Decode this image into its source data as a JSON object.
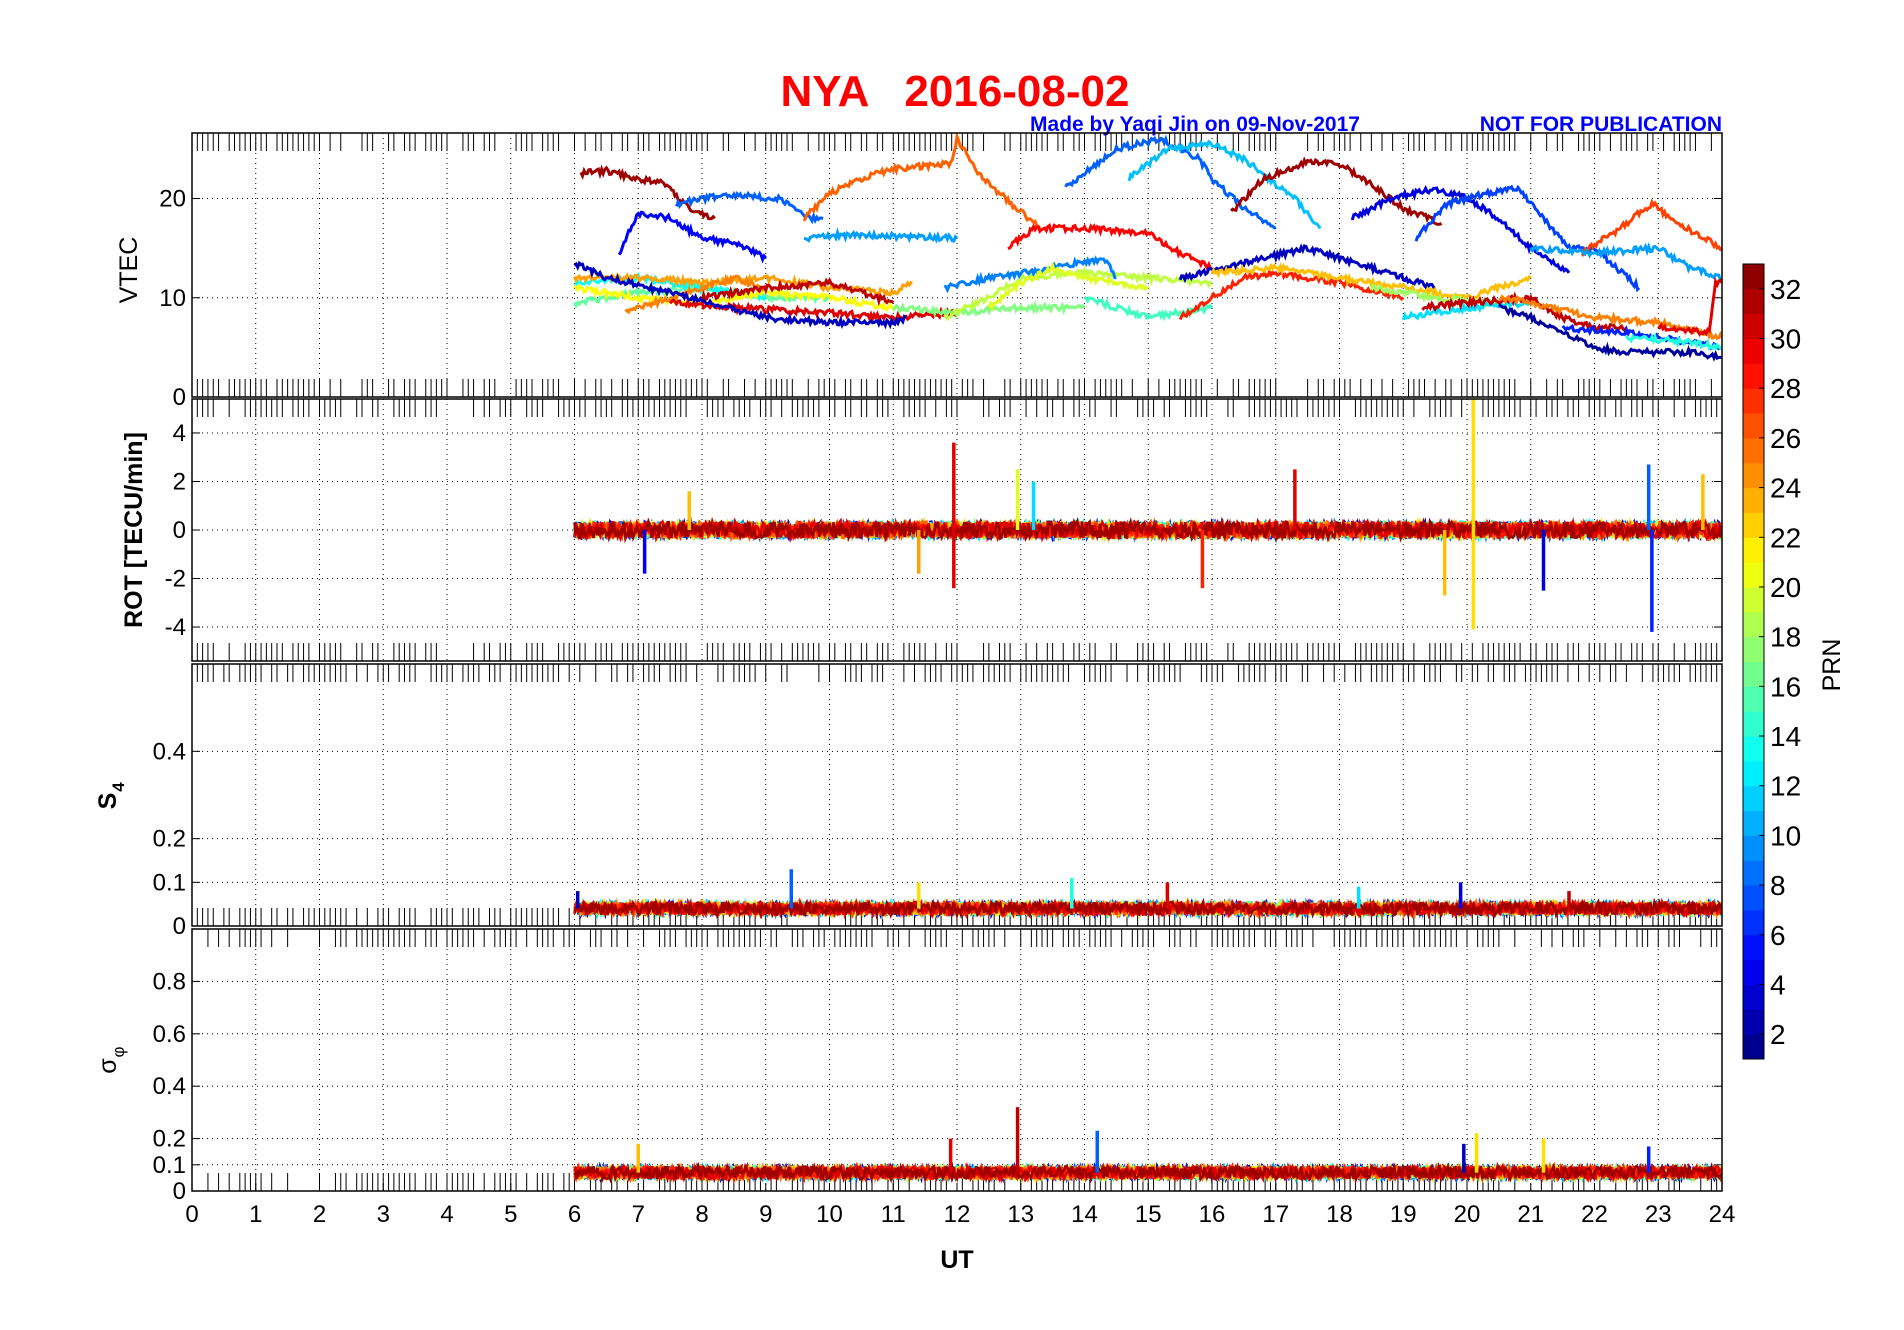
{
  "header": {
    "title": "NYA   2016-08-02",
    "credit": "Made by Yaqi Jin on 09-Nov-2017",
    "notice": "NOT FOR PUBLICATION"
  },
  "chart_data": [
    {
      "type": "line",
      "panel": "vtec",
      "ylabel": "VTEC",
      "xlim": [
        0,
        24
      ],
      "ylim": [
        0,
        26.6
      ],
      "yticks": [
        0,
        10,
        20
      ],
      "ytick_labels": [
        "0",
        "10",
        "20"
      ],
      "grid": true,
      "series": [
        {
          "prn": 32,
          "t": [
            6.1,
            6.5,
            7.0,
            7.4,
            7.8,
            8.2
          ],
          "v": [
            22.5,
            22.8,
            22.0,
            21.5,
            19.0,
            18.0
          ]
        },
        {
          "prn": 5,
          "t": [
            6.7,
            7.0,
            7.5,
            8.0,
            8.5,
            9.0
          ],
          "v": [
            14.5,
            18.5,
            18.0,
            16.0,
            15.5,
            14.0
          ]
        },
        {
          "prn": 8,
          "t": [
            7.6,
            8.0,
            8.5,
            9.2,
            9.7,
            9.9
          ],
          "v": [
            19.5,
            20.0,
            20.3,
            20.0,
            18.0,
            18.0
          ]
        },
        {
          "prn": 26,
          "t": [
            9.6,
            10.0,
            10.5,
            11.0,
            11.9,
            12.0,
            12.4,
            13.3
          ],
          "v": [
            18.0,
            20.5,
            22.0,
            23.0,
            23.5,
            26.0,
            22.0,
            17.0
          ]
        },
        {
          "prn": 10,
          "t": [
            9.6,
            10.0,
            11.0,
            12.0
          ],
          "v": [
            16.0,
            16.3,
            16.2,
            16.0
          ]
        },
        {
          "prn": 29,
          "t": [
            12.8,
            13.2,
            14.0,
            15.0,
            15.5,
            16.0
          ],
          "v": [
            15.0,
            17.0,
            17.0,
            16.5,
            14.5,
            13.0
          ]
        },
        {
          "prn": 8,
          "t": [
            13.7,
            14.5,
            15.2,
            15.8,
            16.0,
            16.5,
            17.0
          ],
          "v": [
            21.0,
            25.0,
            26.0,
            24.0,
            22.0,
            19.0,
            17.0
          ]
        },
        {
          "prn": 11,
          "t": [
            14.7,
            15.3,
            16.0,
            16.5,
            17.3,
            17.7
          ],
          "v": [
            22.0,
            25.0,
            25.5,
            24.0,
            20.0,
            17.0
          ]
        },
        {
          "prn": 32,
          "t": [
            16.3,
            16.8,
            17.5,
            18.0,
            18.6,
            19.0,
            19.6
          ],
          "v": [
            18.5,
            22.0,
            23.7,
            23.5,
            21.0,
            19.0,
            17.5
          ]
        },
        {
          "prn": 4,
          "t": [
            18.2,
            18.8,
            19.5,
            20.0,
            20.5,
            21.0,
            21.6
          ],
          "v": [
            18.0,
            20.0,
            21.0,
            20.0,
            18.0,
            15.0,
            12.5
          ]
        },
        {
          "prn": 7,
          "t": [
            19.2,
            19.7,
            20.3,
            20.8,
            21.2,
            21.6,
            22.0,
            22.7
          ],
          "v": [
            16.0,
            19.5,
            20.5,
            21.0,
            18.0,
            15.0,
            15.0,
            11.0
          ]
        },
        {
          "prn": 27,
          "t": [
            21.8,
            22.4,
            22.9,
            23.3,
            24.0
          ],
          "v": [
            14.5,
            17.0,
            19.5,
            17.5,
            15.0
          ]
        },
        {
          "prn": 10,
          "t": [
            21.0,
            22.0,
            23.0,
            23.5,
            24.0
          ],
          "v": [
            15.0,
            14.5,
            15.0,
            13.0,
            12.0
          ]
        },
        {
          "prn": 16,
          "t": [
            6.0,
            7.0,
            8.0,
            9.0,
            10.0
          ],
          "v": [
            9.5,
            10.5,
            11.0,
            10.0,
            10.0
          ]
        },
        {
          "prn": 13,
          "t": [
            6.0,
            7.0,
            8.0,
            9.0
          ],
          "v": [
            11.5,
            12.0,
            11.0,
            10.0
          ]
        },
        {
          "prn": 21,
          "t": [
            6.0,
            7.0,
            8.0,
            9.0,
            10.0,
            11.0
          ],
          "v": [
            11.0,
            10.0,
            9.5,
            10.5,
            10.0,
            9.0
          ]
        },
        {
          "prn": 24,
          "t": [
            6.0,
            7.0,
            8.0,
            9.0,
            10.0,
            11.0,
            11.3
          ],
          "v": [
            12.0,
            12.0,
            11.5,
            12.0,
            11.0,
            10.5,
            11.5
          ]
        },
        {
          "prn": 25,
          "t": [
            6.8,
            7.5,
            8.5,
            9.0
          ],
          "v": [
            8.5,
            10.0,
            12.0,
            11.0
          ]
        },
        {
          "prn": 30,
          "t": [
            7.5,
            8.5,
            10.0,
            11.0,
            12.0
          ],
          "v": [
            9.5,
            9.0,
            8.5,
            8.0,
            8.5
          ]
        },
        {
          "prn": 31,
          "t": [
            8.0,
            9.0,
            10.0,
            11.0
          ],
          "v": [
            10.0,
            11.0,
            11.5,
            9.5
          ]
        },
        {
          "prn": 3,
          "t": [
            6.0,
            6.5,
            7.5,
            9.0,
            10.0,
            11.0,
            11.2
          ],
          "v": [
            13.5,
            12.0,
            10.5,
            8.0,
            7.5,
            7.5,
            8.0
          ]
        },
        {
          "prn": 17,
          "t": [
            11.0,
            12.0,
            13.0,
            14.0
          ],
          "v": [
            9.0,
            8.5,
            9.0,
            9.0
          ]
        },
        {
          "prn": 19,
          "t": [
            11.8,
            12.5,
            13.0,
            14.0,
            15.0,
            16.0
          ],
          "v": [
            8.0,
            10.0,
            12.0,
            12.5,
            12.0,
            11.5
          ]
        },
        {
          "prn": 9,
          "t": [
            11.8,
            12.5,
            13.5,
            14.3,
            14.5
          ],
          "v": [
            11.0,
            12.0,
            13.0,
            14.0,
            12.0
          ]
        },
        {
          "prn": 20,
          "t": [
            12.5,
            13.0,
            13.5,
            14.0,
            15.0
          ],
          "v": [
            9.0,
            11.5,
            13.0,
            12.0,
            11.0
          ]
        },
        {
          "prn": 15,
          "t": [
            14.0,
            15.0,
            16.0
          ],
          "v": [
            10.0,
            8.0,
            9.0
          ]
        },
        {
          "prn": 28,
          "t": [
            15.5,
            16.0,
            16.5,
            17.0,
            18.0,
            19.0
          ],
          "v": [
            8.0,
            10.0,
            12.0,
            12.5,
            11.5,
            10.0
          ]
        },
        {
          "prn": 3,
          "t": [
            15.5,
            16.5,
            17.5,
            18.5,
            19.5
          ],
          "v": [
            12.0,
            13.5,
            15.0,
            13.0,
            11.0
          ]
        },
        {
          "prn": 23,
          "t": [
            16.0,
            17.0,
            18.0,
            19.0,
            20.0,
            21.0
          ],
          "v": [
            12.5,
            13.0,
            12.0,
            11.0,
            10.0,
            12.0
          ]
        },
        {
          "prn": 18,
          "t": [
            18.5,
            19.5,
            20.5
          ],
          "v": [
            11.0,
            10.0,
            9.5
          ]
        },
        {
          "prn": 12,
          "t": [
            19.0,
            20.0,
            21.0
          ],
          "v": [
            8.0,
            9.0,
            9.5
          ]
        },
        {
          "prn": 31,
          "t": [
            19.3,
            20.0,
            21.0,
            21.5,
            22.0,
            22.5
          ],
          "v": [
            9.0,
            9.5,
            10.0,
            8.0,
            7.0,
            7.0
          ]
        },
        {
          "prn": 25,
          "t": [
            20.5,
            21.0,
            22.0,
            23.0,
            24.0
          ],
          "v": [
            10.0,
            9.5,
            8.0,
            7.5,
            6.0
          ]
        },
        {
          "prn": 2,
          "t": [
            20.5,
            21.0,
            22.0,
            22.5,
            23.5,
            24.0
          ],
          "v": [
            9.0,
            8.0,
            5.0,
            4.5,
            4.5,
            4.0
          ]
        },
        {
          "prn": 6,
          "t": [
            21.5,
            22.5,
            23.5,
            24.0
          ],
          "v": [
            7.0,
            6.5,
            5.5,
            5.0
          ]
        },
        {
          "prn": 14,
          "t": [
            22.5,
            23.5,
            24.0
          ],
          "v": [
            6.0,
            5.5,
            5.0
          ]
        },
        {
          "prn": 30,
          "t": [
            23.0,
            23.8,
            23.9,
            24.0
          ],
          "v": [
            7.0,
            6.5,
            11.5,
            11.5
          ]
        }
      ]
    },
    {
      "type": "line",
      "panel": "rot",
      "ylabel": "ROT [TECU/min]",
      "xlim": [
        0,
        24
      ],
      "ylim": [
        -5.4,
        5.4
      ],
      "yticks": [
        -4,
        -2,
        0,
        2,
        4
      ],
      "ytick_labels": [
        "-4",
        "-2",
        "0",
        "2",
        "4"
      ],
      "grid": true,
      "data_start": 6.0,
      "noise_amplitude": 0.35,
      "spikes": [
        {
          "prn": 30,
          "t": 11.95,
          "v": 3.6
        },
        {
          "prn": 30,
          "t": 11.95,
          "v": -2.4
        },
        {
          "prn": 20,
          "t": 12.95,
          "v": 2.5
        },
        {
          "prn": 12,
          "t": 13.2,
          "v": 2.0
        },
        {
          "prn": 22,
          "t": 20.1,
          "v": 5.4
        },
        {
          "prn": 22,
          "t": 20.1,
          "v": -4.1
        },
        {
          "prn": 8,
          "t": 22.85,
          "v": 2.7
        },
        {
          "prn": 6,
          "t": 22.9,
          "v": -4.2
        },
        {
          "prn": 30,
          "t": 17.3,
          "v": 2.5
        },
        {
          "prn": 28,
          "t": 15.85,
          "v": -2.4
        },
        {
          "prn": 24,
          "t": 11.4,
          "v": -1.8
        },
        {
          "prn": 23,
          "t": 19.65,
          "v": -2.7
        },
        {
          "prn": 4,
          "t": 21.2,
          "v": -2.5
        },
        {
          "prn": 23,
          "t": 23.7,
          "v": 2.3
        },
        {
          "prn": 5,
          "t": 7.1,
          "v": -1.8
        },
        {
          "prn": 23,
          "t": 7.8,
          "v": 1.6
        }
      ]
    },
    {
      "type": "line",
      "panel": "s4",
      "ylabel": "S4",
      "xlim": [
        0,
        24
      ],
      "ylim": [
        0,
        0.6
      ],
      "yticks": [
        0,
        0.1,
        0.2,
        0.4
      ],
      "ytick_labels": [
        "0",
        "0.1",
        "0.2",
        "0.4"
      ],
      "grid": true,
      "data_start": 6.0,
      "baseline": 0.04,
      "noise_amplitude": 0.015,
      "spikes": [
        {
          "prn": 8,
          "t": 9.4,
          "v": 0.13
        },
        {
          "prn": 14,
          "t": 13.8,
          "v": 0.11
        },
        {
          "prn": 22,
          "t": 11.4,
          "v": 0.1
        },
        {
          "prn": 4,
          "t": 19.9,
          "v": 0.1
        },
        {
          "prn": 30,
          "t": 15.3,
          "v": 0.1
        },
        {
          "prn": 12,
          "t": 18.3,
          "v": 0.09
        },
        {
          "prn": 3,
          "t": 6.05,
          "v": 0.08
        },
        {
          "prn": 31,
          "t": 21.6,
          "v": 0.08
        }
      ]
    },
    {
      "type": "line",
      "panel": "sigma_phi",
      "ylabel": "σφ",
      "ylabel_main": "σ",
      "ylabel_sub": "φ",
      "xlim": [
        0,
        24
      ],
      "ylim": [
        0,
        1.0
      ],
      "yticks": [
        0,
        0.1,
        0.2,
        0.4,
        0.6,
        0.8
      ],
      "ytick_labels": [
        "0",
        "0.1",
        "0.2",
        "0.4",
        "0.6",
        "0.8"
      ],
      "grid": true,
      "data_start": 6.0,
      "baseline": 0.07,
      "noise_amplitude": 0.025,
      "spikes": [
        {
          "prn": 31,
          "t": 12.95,
          "v": 0.32
        },
        {
          "prn": 8,
          "t": 14.2,
          "v": 0.23
        },
        {
          "prn": 22,
          "t": 20.15,
          "v": 0.22
        },
        {
          "prn": 30,
          "t": 11.9,
          "v": 0.2
        },
        {
          "prn": 22,
          "t": 21.2,
          "v": 0.2
        },
        {
          "prn": 6,
          "t": 22.85,
          "v": 0.17
        },
        {
          "prn": 23,
          "t": 7.0,
          "v": 0.18
        },
        {
          "prn": 3,
          "t": 19.95,
          "v": 0.18
        }
      ]
    }
  ],
  "x_axis": {
    "label": "UT",
    "ticks": [
      0,
      1,
      2,
      3,
      4,
      5,
      6,
      7,
      8,
      9,
      10,
      11,
      12,
      13,
      14,
      15,
      16,
      17,
      18,
      19,
      20,
      21,
      22,
      23,
      24
    ],
    "tick_labels": [
      "0",
      "1",
      "2",
      "3",
      "4",
      "5",
      "6",
      "7",
      "8",
      "9",
      "10",
      "11",
      "12",
      "13",
      "14",
      "15",
      "16",
      "17",
      "18",
      "19",
      "20",
      "21",
      "22",
      "23",
      "24"
    ]
  },
  "colorbar": {
    "label": "PRN",
    "colormap": "jet",
    "range": [
      1,
      33
    ],
    "ticks": [
      2,
      4,
      6,
      8,
      10,
      12,
      14,
      16,
      18,
      20,
      22,
      24,
      26,
      28,
      30,
      32
    ],
    "tick_labels": [
      "2",
      "4",
      "6",
      "8",
      "10",
      "12",
      "14",
      "16",
      "18",
      "20",
      "22",
      "24",
      "26",
      "28",
      "30",
      "32"
    ]
  },
  "colors": {
    "title": "#ff0000",
    "credit": "#0000ff",
    "grid": "#000000"
  }
}
